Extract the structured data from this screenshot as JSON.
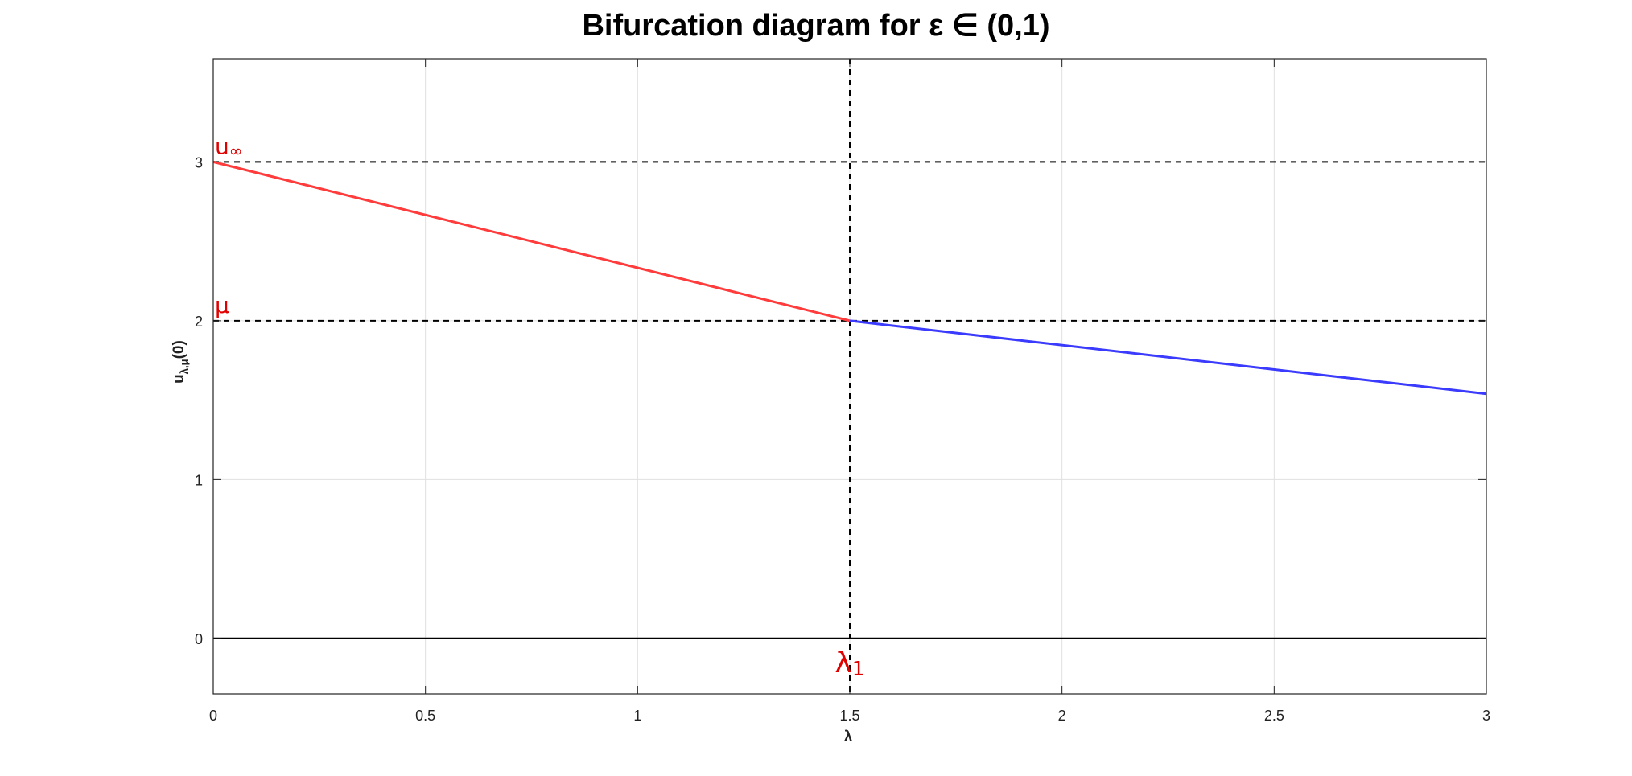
{
  "chart_data": {
    "type": "line",
    "title": "Bifurcation diagram for ε ∈ (0,1)",
    "xlabel": "λ",
    "ylabel": "u",
    "ylabel_sub": "λ,μ",
    "ylabel_suffix": "(0)",
    "xlim": [
      0,
      3
    ],
    "ylim": [
      -0.35,
      3.65
    ],
    "xticks": [
      0,
      0.5,
      1,
      1.5,
      2,
      2.5,
      3
    ],
    "xtick_labels": [
      "0",
      "0.5",
      "1",
      "1.5",
      "2",
      "2.5",
      "3"
    ],
    "yticks": [
      0,
      1,
      2,
      3
    ],
    "ytick_labels": [
      "0",
      "1",
      "2",
      "3"
    ],
    "grid": true,
    "series": [
      {
        "color": "#ff3b3b",
        "points": [
          [
            0,
            3
          ],
          [
            1.5,
            2
          ]
        ]
      },
      {
        "color": "#3b3bff",
        "points": [
          [
            1.5,
            2
          ],
          [
            3,
            1.54
          ]
        ]
      }
    ],
    "reference_lines": {
      "horizontal_dashed": [
        3,
        2
      ],
      "vertical_dashed": [
        1.5
      ],
      "horizontal_solid": [
        0
      ]
    },
    "annotations": [
      {
        "text": "u",
        "sub": "∞",
        "x": 0,
        "y": 3
      },
      {
        "text": "μ",
        "x": 0,
        "y": 2
      },
      {
        "text": "λ",
        "sub": "1",
        "x": 1.5,
        "y": 0
      }
    ],
    "colors": {
      "annotation": "#e00000",
      "grid": "#e0e0e0",
      "axes": "#000000"
    }
  }
}
